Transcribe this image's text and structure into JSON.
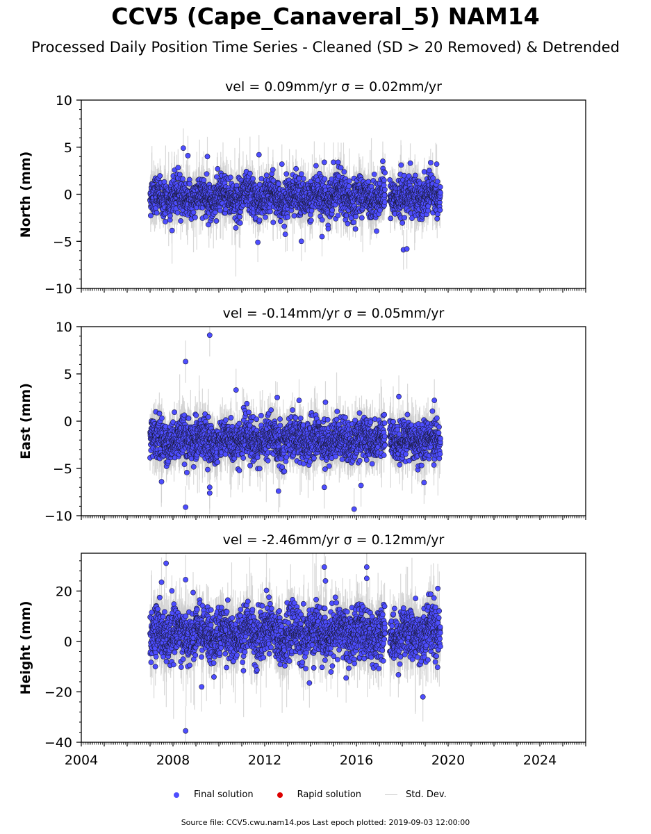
{
  "title": "CCV5 (Cape_Canaveral_5) NAM14",
  "subtitle": "Processed Daily Position Time Series - Cleaned (SD > 20 Removed) & Detrended",
  "footer": "Source file: CCV5.cwu.nam14.pos  Last epoch plotted: 2019-09-03 12:00:00",
  "legend": {
    "final": "Final solution",
    "rapid": "Rapid solution",
    "std": "Std. Dev."
  },
  "colors": {
    "final": "#4d4dff",
    "rapid": "#dd0000",
    "std": "#cccccc",
    "edge": "#1a1a3a"
  },
  "chart_data": [
    {
      "type": "scatter",
      "component": "north",
      "title": "vel = 0.09mm/yr   σ = 0.02mm/yr",
      "ylabel": "North (mm)",
      "xlim": [
        2004,
        2026
      ],
      "ylim": [
        -10,
        10
      ],
      "yticks": [
        -10,
        -5,
        0,
        5,
        10
      ],
      "xticks": [
        2004,
        2008,
        2012,
        2016,
        2020,
        2024
      ],
      "data_span": [
        2007.0,
        2019.67
      ],
      "gap": [
        2017.25,
        2017.45
      ],
      "mean": -0.3,
      "spread_sd": 1.1,
      "std_dev_typical": 1.5,
      "outliers": [
        {
          "x": 2008.45,
          "y": 4.9
        },
        {
          "x": 2008.65,
          "y": 4.1
        },
        {
          "x": 2009.5,
          "y": 4.0
        },
        {
          "x": 2011.75,
          "y": 4.2
        },
        {
          "x": 2011.7,
          "y": -5.1
        },
        {
          "x": 2013.6,
          "y": -5.0
        },
        {
          "x": 2014.5,
          "y": -4.5
        },
        {
          "x": 2014.6,
          "y": 3.4
        },
        {
          "x": 2015.0,
          "y": 3.4
        },
        {
          "x": 2015.2,
          "y": 3.4
        },
        {
          "x": 2017.15,
          "y": 3.5
        },
        {
          "x": 2018.35,
          "y": 3.3
        },
        {
          "x": 2018.05,
          "y": -5.9
        },
        {
          "x": 2018.2,
          "y": -5.8
        },
        {
          "x": 2019.5,
          "y": 3.2
        },
        {
          "x": 2017.95,
          "y": 3.1
        },
        {
          "x": 2012.75,
          "y": 3.2
        }
      ]
    },
    {
      "type": "scatter",
      "component": "east",
      "title": "vel = -0.14mm/yr   σ = 0.05mm/yr",
      "ylabel": "East (mm)",
      "xlim": [
        2004,
        2026
      ],
      "ylim": [
        -10,
        10
      ],
      "yticks": [
        -10,
        -5,
        0,
        5,
        10
      ],
      "xticks": [
        2004,
        2008,
        2012,
        2016,
        2020,
        2024
      ],
      "data_span": [
        2007.0,
        2019.67
      ],
      "gap": [
        2017.25,
        2017.45
      ],
      "mean": -2.0,
      "spread_sd": 1.2,
      "std_dev_typical": 1.6,
      "outliers": [
        {
          "x": 2008.55,
          "y": 6.3
        },
        {
          "x": 2009.6,
          "y": 9.1
        },
        {
          "x": 2008.55,
          "y": -9.1
        },
        {
          "x": 2009.6,
          "y": -7.6
        },
        {
          "x": 2009.6,
          "y": -7.0
        },
        {
          "x": 2015.9,
          "y": -9.3
        },
        {
          "x": 2010.75,
          "y": 3.3
        },
        {
          "x": 2014.6,
          "y": -7.0
        },
        {
          "x": 2018.95,
          "y": -6.5
        },
        {
          "x": 2017.85,
          "y": 2.6
        },
        {
          "x": 2019.4,
          "y": 2.2
        },
        {
          "x": 2013.5,
          "y": 2.2
        },
        {
          "x": 2014.65,
          "y": 2.0
        },
        {
          "x": 2012.6,
          "y": -7.4
        },
        {
          "x": 2016.2,
          "y": -6.8
        },
        {
          "x": 2007.5,
          "y": -6.4
        }
      ]
    },
    {
      "type": "scatter",
      "component": "height",
      "title": "vel = -2.46mm/yr   σ = 0.12mm/yr",
      "ylabel": "Height (mm)",
      "xlim": [
        2004,
        2026
      ],
      "ylim": [
        -40,
        35
      ],
      "yticks": [
        -40,
        -20,
        0,
        20
      ],
      "xticks": [
        2004,
        2008,
        2012,
        2016,
        2020,
        2024
      ],
      "data_span": [
        2007.0,
        2019.67
      ],
      "gap": [
        2017.25,
        2017.45
      ],
      "mean": 3.0,
      "spread_sd": 5.5,
      "std_dev_typical": 7.0,
      "outliers": [
        {
          "x": 2007.7,
          "y": 31.0
        },
        {
          "x": 2008.55,
          "y": -35.5
        },
        {
          "x": 2008.55,
          "y": 24.5
        },
        {
          "x": 2014.6,
          "y": 29.5
        },
        {
          "x": 2014.65,
          "y": 24.0
        },
        {
          "x": 2016.45,
          "y": 29.5
        },
        {
          "x": 2016.45,
          "y": 25.0
        },
        {
          "x": 2018.9,
          "y": -22.0
        },
        {
          "x": 2009.25,
          "y": -18.0
        },
        {
          "x": 2007.5,
          "y": 23.5
        },
        {
          "x": 2013.95,
          "y": -16.5
        },
        {
          "x": 2015.55,
          "y": -14.5
        },
        {
          "x": 2019.55,
          "y": 21.0
        }
      ]
    }
  ]
}
